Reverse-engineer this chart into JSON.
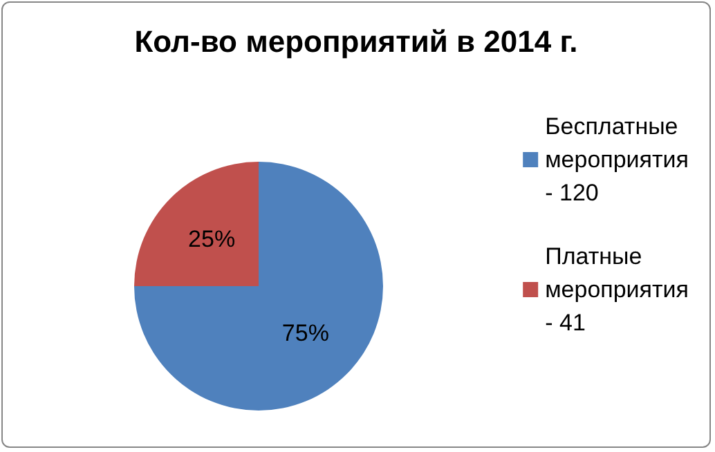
{
  "chart_data": {
    "type": "pie",
    "title": "Кол-во мероприятий в 2014 г.",
    "categories": [
      "Бесплатные мероприятия - 120",
      "Платные мероприятия - 41"
    ],
    "values": [
      75,
      25
    ],
    "value_labels": [
      "75%",
      "25%"
    ],
    "colors": [
      "#4f81bd",
      "#c0504d"
    ],
    "legend": "right"
  }
}
